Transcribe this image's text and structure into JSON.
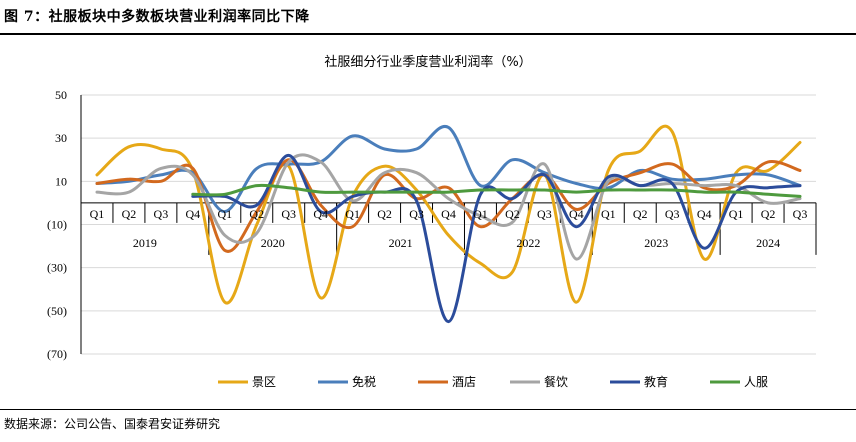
{
  "figure_caption": "图 7：社服板块中多数板块营业利润率同比下降",
  "source_note": "数据来源：公司公告、国泰君安证券研究",
  "chart_data": {
    "type": "line",
    "title": "社服细分行业季度营业利润率（%）",
    "ylim": [
      -70,
      50
    ],
    "yticks": [
      50,
      30,
      10,
      -10,
      -30,
      -50,
      -70
    ],
    "ytick_labels": [
      "50",
      "30",
      "10",
      "(10)",
      "(30)",
      "(50)",
      "(70)"
    ],
    "grid": true,
    "legend_position": "bottom",
    "categories": [
      "Q1",
      "Q2",
      "Q3",
      "Q4",
      "Q1",
      "Q2",
      "Q3",
      "Q4",
      "Q1",
      "Q2",
      "Q3",
      "Q4",
      "Q1",
      "Q2",
      "Q3",
      "Q4",
      "Q1",
      "Q2",
      "Q3",
      "Q4",
      "Q1",
      "Q2",
      "Q3"
    ],
    "years": [
      {
        "label": "2019",
        "start": 0,
        "end": 3
      },
      {
        "label": "2020",
        "start": 4,
        "end": 7
      },
      {
        "label": "2021",
        "start": 8,
        "end": 11
      },
      {
        "label": "2022",
        "start": 12,
        "end": 15
      },
      {
        "label": "2023",
        "start": 16,
        "end": 19
      },
      {
        "label": "2024",
        "start": 20,
        "end": 22
      }
    ],
    "series": [
      {
        "name": "景区",
        "color": "#E6A817",
        "values": [
          13,
          26,
          25,
          15,
          -46,
          -10,
          17,
          -44,
          3,
          17,
          6,
          -15,
          -28,
          -32,
          13,
          -46,
          15,
          24,
          33,
          -26,
          14,
          15,
          28
        ]
      },
      {
        "name": "免税",
        "color": "#4A7EBB",
        "values": [
          9,
          10,
          13,
          14,
          -4,
          16,
          18,
          19,
          31,
          25,
          25,
          35,
          8,
          20,
          14,
          9,
          7,
          15,
          11,
          11,
          13,
          13,
          8
        ]
      },
      {
        "name": "酒店",
        "color": "#D2691E",
        "values": [
          9,
          11,
          10,
          16,
          -22,
          -4,
          20,
          -1,
          -11,
          13,
          2,
          7,
          -11,
          2,
          13,
          -3,
          9,
          14,
          18,
          7,
          8,
          19,
          15
        ]
      },
      {
        "name": "餐饮",
        "color": "#A5A5A5",
        "values": [
          5,
          5,
          16,
          13,
          -15,
          -14,
          19,
          19,
          1,
          14,
          14,
          2,
          -6,
          -9,
          18,
          -26,
          10,
          8,
          9,
          8,
          8,
          0,
          2
        ]
      },
      {
        "name": "教育",
        "color": "#2B4C9B",
        "values": [
          null,
          null,
          null,
          3,
          3,
          -1,
          22,
          -4,
          3,
          5,
          1,
          -55,
          4,
          2,
          13,
          -11,
          12,
          8,
          9,
          -21,
          5,
          7,
          8
        ]
      },
      {
        "name": "人服",
        "color": "#4E9A3E",
        "values": [
          null,
          null,
          null,
          4,
          4,
          8,
          7,
          5,
          5,
          5,
          5,
          5,
          6,
          6,
          6,
          5,
          6,
          6,
          6,
          5,
          5,
          4,
          3
        ]
      }
    ]
  }
}
